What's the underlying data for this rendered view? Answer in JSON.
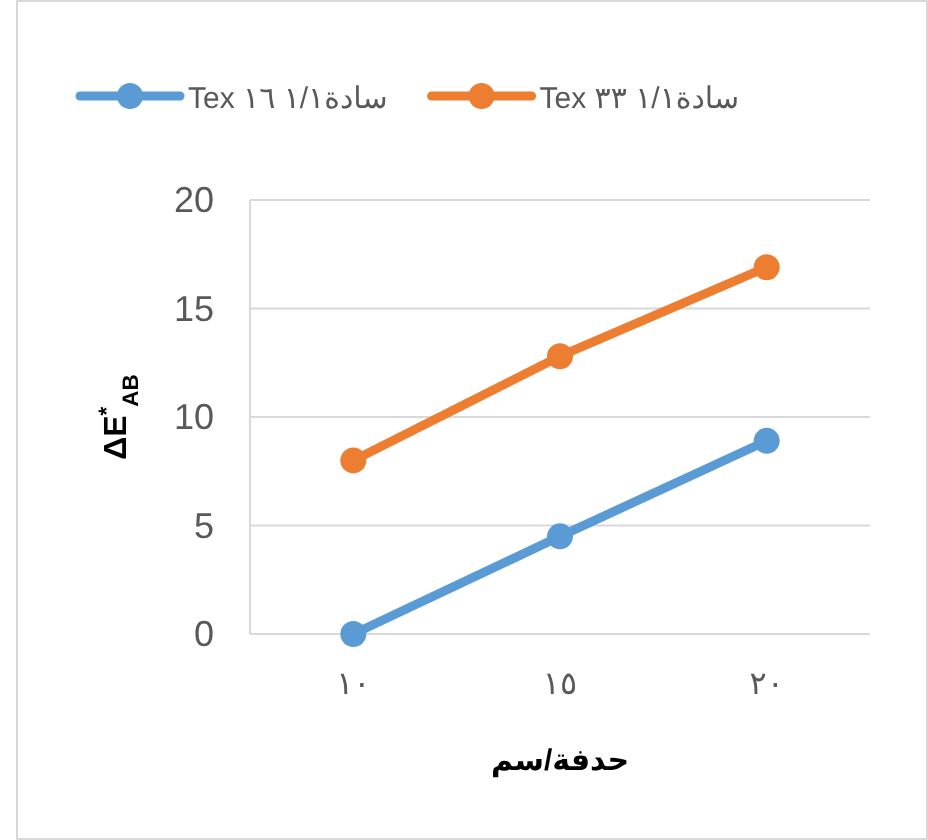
{
  "chart_data": {
    "type": "line",
    "xlabel": "حدفة/سم",
    "ylabel": "ΔE$^{*}$$_{AB}$",
    "categories": [
      "١٠",
      "١٥",
      "٢٠"
    ],
    "series": [
      {
        "name": "سادة١/١ ١٦ Tex",
        "color": "#5b9bd5",
        "values": [
          0,
          4.5,
          8.9
        ]
      },
      {
        "name": "سادة١/١ ٣٣ Tex",
        "color": "#ed7d31",
        "values": [
          8,
          12.8,
          16.9
        ]
      }
    ],
    "ylim": [
      0,
      20
    ],
    "yticks": [
      0,
      5,
      10,
      15,
      20
    ],
    "grid": "y",
    "legend": "top",
    "marker": "circle",
    "line_style": "solid"
  }
}
